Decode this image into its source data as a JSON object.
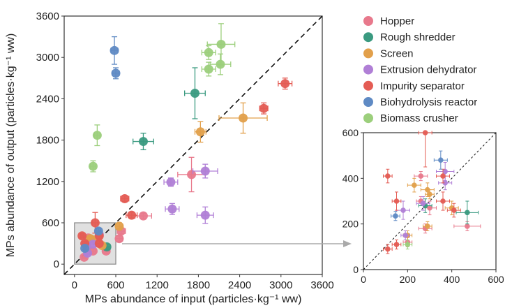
{
  "chart_data": [
    {
      "type": "scatter",
      "panel": "main",
      "xlabel": "MPs abundance of input (particles·kg⁻¹ ww)",
      "ylabel": "MPs abundance of output (particles·kg⁻¹ ww)",
      "xlim": [
        -150,
        3600
      ],
      "ylim": [
        -150,
        3600
      ],
      "x_ticks": [
        "0",
        "600",
        "1200",
        "1800",
        "2400",
        "3000",
        "3600"
      ],
      "y_ticks": [
        "0",
        "600",
        "1200",
        "1800",
        "2400",
        "3000",
        "3600"
      ],
      "reference_line": "y = x (dashed)",
      "inset_region": {
        "x": [
          0,
          600
        ],
        "y": [
          0,
          600
        ]
      },
      "legend_position": "right",
      "series": [
        {
          "name": "Hopper",
          "color": "#e8798c",
          "points": [
            {
              "x": 1700,
              "y": 1300,
              "xerr": 200,
              "yerr": 250
            },
            {
              "x": 1000,
              "y": 700,
              "xerr": 120,
              "yerr": 40
            },
            {
              "x": 680,
              "y": 480,
              "xerr": 60,
              "yerr": 40
            },
            {
              "x": 650,
              "y": 370,
              "xerr": 50,
              "yerr": 40
            },
            {
              "x": 200,
              "y": 380,
              "xerr": 40,
              "yerr": 40
            },
            {
              "x": 270,
              "y": 190,
              "xerr": 40,
              "yerr": 30
            },
            {
              "x": 460,
              "y": 190,
              "xerr": 50,
              "yerr": 30
            },
            {
              "x": 140,
              "y": 100,
              "xerr": 30,
              "yerr": 20
            }
          ]
        },
        {
          "name": "Rough shredder",
          "color": "#3a9a80",
          "points": [
            {
              "x": 1750,
              "y": 2480,
              "xerr": 150,
              "yerr": 370
            },
            {
              "x": 1000,
              "y": 1780,
              "xerr": 150,
              "yerr": 120
            },
            {
              "x": 470,
              "y": 250,
              "xerr": 50,
              "yerr": 40
            }
          ]
        },
        {
          "name": "Screen",
          "color": "#e2a04b",
          "points": [
            {
              "x": 2450,
              "y": 2120,
              "xerr": 350,
              "yerr": 220
            },
            {
              "x": 1830,
              "y": 1920,
              "xerr": 80,
              "yerr": 150
            },
            {
              "x": 650,
              "y": 550,
              "xerr": 50,
              "yerr": 50
            },
            {
              "x": 400,
              "y": 270,
              "xerr": 30,
              "yerr": 30
            },
            {
              "x": 290,
              "y": 350,
              "xerr": 40,
              "yerr": 40
            },
            {
              "x": 230,
              "y": 370,
              "xerr": 40,
              "yerr": 40
            }
          ]
        },
        {
          "name": "Extrusion dehydrator",
          "color": "#b07fd6",
          "points": [
            {
              "x": 1900,
              "y": 1350,
              "xerr": 180,
              "yerr": 100
            },
            {
              "x": 1400,
              "y": 1190,
              "xerr": 100,
              "yerr": 60
            },
            {
              "x": 1420,
              "y": 800,
              "xerr": 100,
              "yerr": 80
            },
            {
              "x": 1900,
              "y": 710,
              "xerr": 120,
              "yerr": 120
            },
            {
              "x": 360,
              "y": 430,
              "xerr": 40,
              "yerr": 40
            },
            {
              "x": 270,
              "y": 290,
              "xerr": 40,
              "yerr": 40
            },
            {
              "x": 180,
              "y": 260,
              "xerr": 30,
              "yerr": 40
            },
            {
              "x": 190,
              "y": 160,
              "xerr": 30,
              "yerr": 20
            }
          ]
        },
        {
          "name": "Impurity separator",
          "color": "#e45c54",
          "points": [
            {
              "x": 3060,
              "y": 2620,
              "xerr": 100,
              "yerr": 80
            },
            {
              "x": 2750,
              "y": 2260,
              "xerr": 60,
              "yerr": 80
            },
            {
              "x": 730,
              "y": 950,
              "xerr": 60,
              "yerr": 40
            },
            {
              "x": 830,
              "y": 710,
              "xerr": 80,
              "yerr": 40
            },
            {
              "x": 300,
              "y": 600,
              "xerr": 40,
              "yerr": 150
            },
            {
              "x": 110,
              "y": 410,
              "xerr": 20,
              "yerr": 30
            },
            {
              "x": 360,
              "y": 410,
              "xerr": 40,
              "yerr": 40
            },
            {
              "x": 150,
              "y": 300,
              "xerr": 30,
              "yerr": 30
            },
            {
              "x": 360,
              "y": 300,
              "xerr": 40,
              "yerr": 40
            }
          ]
        },
        {
          "name": "Biohydrolysis reactor",
          "color": "#5f8ac4",
          "points": [
            {
              "x": 580,
              "y": 3100,
              "xerr": 50,
              "yerr": 200
            },
            {
              "x": 600,
              "y": 2770,
              "xerr": 50,
              "yerr": 80
            },
            {
              "x": 350,
              "y": 480,
              "xerr": 30,
              "yerr": 40
            },
            {
              "x": 150,
              "y": 230,
              "xerr": 20,
              "yerr": 20
            }
          ]
        },
        {
          "name": "Biomass crusher",
          "color": "#9ccf7c",
          "points": [
            {
              "x": 2130,
              "y": 3190,
              "xerr": 200,
              "yerr": 300
            },
            {
              "x": 1950,
              "y": 3070,
              "xerr": 100,
              "yerr": 100
            },
            {
              "x": 2120,
              "y": 2900,
              "xerr": 150,
              "yerr": 150
            },
            {
              "x": 1950,
              "y": 2830,
              "xerr": 100,
              "yerr": 100
            },
            {
              "x": 330,
              "y": 1870,
              "xerr": 40,
              "yerr": 150
            },
            {
              "x": 270,
              "y": 1420,
              "xerr": 40,
              "yerr": 80
            }
          ]
        }
      ]
    },
    {
      "type": "scatter",
      "panel": "inset",
      "xlim": [
        0,
        600
      ],
      "ylim": [
        0,
        600
      ],
      "x_ticks": [
        "0",
        "200",
        "400",
        "600"
      ],
      "y_ticks": [
        "0",
        "200",
        "400",
        "600"
      ],
      "reference_line": "y = x (dashed)",
      "series": [
        {
          "name": "Hopper",
          "color": "#e8798c",
          "points": [
            {
              "x": 470,
              "y": 190,
              "xerr": 60,
              "yerr": 20
            },
            {
              "x": 260,
              "y": 410,
              "xerr": 30,
              "yerr": 20
            },
            {
              "x": 280,
              "y": 180,
              "xerr": 30,
              "yerr": 20
            },
            {
              "x": 200,
              "y": 120,
              "xerr": 20,
              "yerr": 20
            },
            {
              "x": 300,
              "y": 270,
              "xerr": 30,
              "yerr": 30
            },
            {
              "x": 260,
              "y": 300,
              "xerr": 20,
              "yerr": 20
            }
          ]
        },
        {
          "name": "Rough shredder",
          "color": "#3a9a80",
          "points": [
            {
              "x": 470,
              "y": 250,
              "xerr": 50,
              "yerr": 50
            },
            {
              "x": 280,
              "y": 280,
              "xerr": 30,
              "yerr": 30
            }
          ]
        },
        {
          "name": "Screen",
          "color": "#e2a04b",
          "points": [
            {
              "x": 230,
              "y": 370,
              "xerr": 30,
              "yerr": 30
            },
            {
              "x": 290,
              "y": 350,
              "xerr": 30,
              "yerr": 30
            },
            {
              "x": 400,
              "y": 270,
              "xerr": 30,
              "yerr": 30
            },
            {
              "x": 290,
              "y": 190,
              "xerr": 20,
              "yerr": 20
            },
            {
              "x": 200,
              "y": 150,
              "xerr": 20,
              "yerr": 20
            },
            {
              "x": 300,
              "y": 330,
              "xerr": 20,
              "yerr": 20
            }
          ]
        },
        {
          "name": "Extrusion dehydrator",
          "color": "#b07fd6",
          "points": [
            {
              "x": 370,
              "y": 430,
              "xerr": 40,
              "yerr": 40
            },
            {
              "x": 180,
              "y": 260,
              "xerr": 30,
              "yerr": 40
            },
            {
              "x": 270,
              "y": 290,
              "xerr": 30,
              "yerr": 30
            },
            {
              "x": 370,
              "y": 380,
              "xerr": 30,
              "yerr": 30
            },
            {
              "x": 190,
              "y": 150,
              "xerr": 20,
              "yerr": 20
            }
          ]
        },
        {
          "name": "Impurity separator",
          "color": "#e45c54",
          "points": [
            {
              "x": 110,
              "y": 410,
              "xerr": 20,
              "yerr": 30
            },
            {
              "x": 150,
              "y": 300,
              "xerr": 20,
              "yerr": 40
            },
            {
              "x": 360,
              "y": 410,
              "xerr": 30,
              "yerr": 30
            },
            {
              "x": 360,
              "y": 300,
              "xerr": 30,
              "yerr": 40
            },
            {
              "x": 110,
              "y": 90,
              "xerr": 20,
              "yerr": 20
            },
            {
              "x": 150,
              "y": 110,
              "xerr": 20,
              "yerr": 20
            },
            {
              "x": 280,
              "y": 600,
              "xerr": 30,
              "yerr": 150
            },
            {
              "x": 410,
              "y": 260,
              "xerr": 30,
              "yerr": 30
            }
          ]
        },
        {
          "name": "Biohydrolysis reactor",
          "color": "#5f8ac4",
          "points": [
            {
              "x": 350,
              "y": 480,
              "xerr": 30,
              "yerr": 40
            },
            {
              "x": 145,
              "y": 235,
              "xerr": 20,
              "yerr": 20
            }
          ]
        },
        {
          "name": "Biomass crusher",
          "color": "#9ccf7c",
          "points": [
            {
              "x": 200,
              "y": 110,
              "xerr": 20,
              "yerr": 20
            }
          ]
        }
      ]
    }
  ]
}
